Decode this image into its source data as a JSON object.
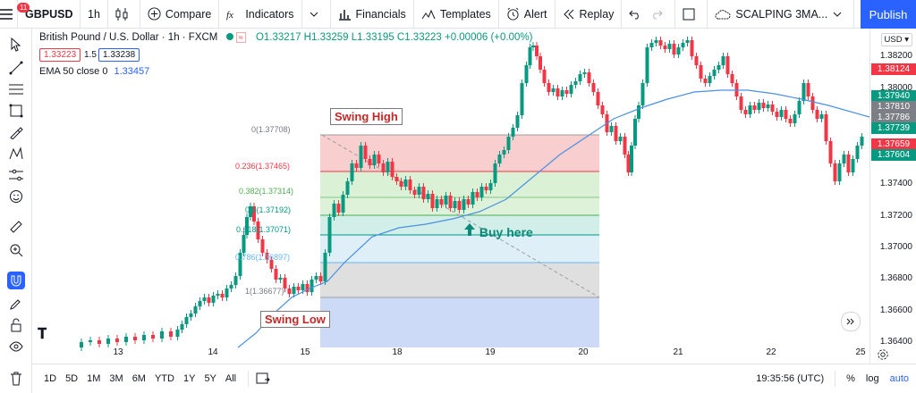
{
  "topbar": {
    "badge": "11",
    "symbol": "GBPUSD",
    "interval": "1h",
    "compare": "Compare",
    "indicators": "Indicators",
    "financials": "Financials",
    "templates": "Templates",
    "alert": "Alert",
    "replay": "Replay",
    "layout_name": "SCALPING 3MA...",
    "publish": "Publish"
  },
  "legend": {
    "title": "British Pound / U.S. Dollar · 1h · FXCM",
    "ohlc": "O1.33217  H1.33259  L1.33195  C1.33223  +0.00006 (+0.00%)",
    "sell_price": "1.33223",
    "spread": "1.5",
    "buy_price": "1.33238",
    "ema_label": "EMA 50 close 0",
    "ema_value": "1.33457"
  },
  "price_axis": {
    "currency": "USD",
    "ticks": [
      "1.38200",
      "1.38000",
      "1.37400",
      "1.37200",
      "1.37000",
      "1.36800",
      "1.36600",
      "1.36400"
    ],
    "tags": [
      {
        "value": "1.38124",
        "color": "#f23645"
      },
      {
        "value": "1.37940",
        "color": "#089981"
      },
      {
        "value": "1.37810",
        "color": "#7d7f86"
      },
      {
        "value": "1.37786",
        "color": "#7d7f86"
      },
      {
        "value": "1.37739",
        "color": "#089981"
      },
      {
        "value": "1.37659",
        "color": "#f23645"
      },
      {
        "value": "1.37604",
        "color": "#089981"
      }
    ]
  },
  "time_axis": [
    "13",
    "14",
    "15",
    "18",
    "19",
    "20",
    "21",
    "22",
    "25"
  ],
  "fib": {
    "levels": [
      {
        "label": "0(1.37708)",
        "color": "#787b86"
      },
      {
        "label": "0.236(1.37465)",
        "color": "#f23645"
      },
      {
        "label": "0.382(1.37314)",
        "color": "#4caf50"
      },
      {
        "label": "0.5(1.37192)",
        "color": "#089981"
      },
      {
        "label": "0.618(1.37071)",
        "color": "#009688"
      },
      {
        "label": "0.786(1.36897)",
        "color": "#64b5f6"
      },
      {
        "label": "1(1.36677)",
        "color": "#787b86"
      }
    ]
  },
  "annotations": {
    "swing_high": "Swing High",
    "swing_low": "Swing Low",
    "buy_here": "Buy here"
  },
  "bottombar": {
    "ranges": [
      "1D",
      "5D",
      "1M",
      "3M",
      "6M",
      "YTD",
      "1Y",
      "5Y",
      "All"
    ],
    "time": "19:35:56 (UTC)",
    "percent": "%",
    "log": "log",
    "auto": "auto"
  }
}
